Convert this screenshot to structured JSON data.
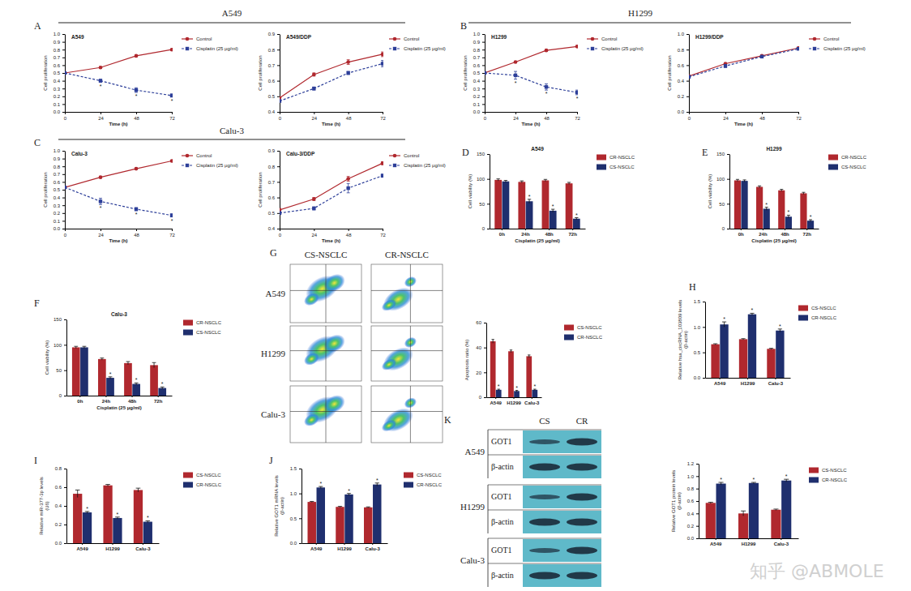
{
  "chart_data": [
    {
      "type": "line",
      "title": "A549",
      "x_label": "Time (h)",
      "y_label": "Cell proliferation",
      "x": [
        0,
        24,
        48,
        72
      ],
      "xlim": [
        0,
        72
      ],
      "xticks": [
        0,
        24,
        48,
        72
      ],
      "ylim": [
        0,
        1
      ],
      "yticks": [
        {
          "value": 0,
          "label": "0.0"
        },
        0.1,
        0.2,
        0.3,
        0.4,
        0.5,
        0.6,
        0.7,
        0.8,
        0.9,
        {
          "value": 1,
          "label": "1.0"
        }
      ],
      "legend": "right",
      "series": [
        {
          "name": "Control",
          "color": "#b0282e",
          "marker": "circle",
          "line_style": "solid",
          "values": [
            0.5,
            0.57,
            0.72,
            0.8
          ],
          "errors": [
            0.005,
            0.01,
            0.01,
            0.01
          ],
          "annotations": [
            null,
            null,
            null,
            null
          ]
        },
        {
          "name": "Cisplatin (25 μg/ml)",
          "color": "#2d3f99",
          "marker": "square",
          "line_style": "dashed",
          "values": [
            0.5,
            0.4,
            0.28,
            0.21
          ],
          "errors": [
            0.01,
            0.02,
            0.03,
            0.02
          ],
          "annotations": [
            null,
            "*",
            "*",
            "*"
          ]
        }
      ]
    },
    {
      "type": "line",
      "title": "A549/DDP",
      "x_label": "Time (h)",
      "y_label": "Cell proliferation",
      "x": [
        0,
        24,
        48,
        72
      ],
      "xlim": [
        0,
        72
      ],
      "xticks": [
        0,
        24,
        48,
        72
      ],
      "ylim": [
        0.4,
        0.9
      ],
      "yticks": [
        0.4,
        0.5,
        0.6,
        0.7,
        0.8,
        0.9
      ],
      "legend": "right",
      "series": [
        {
          "name": "Control",
          "color": "#b0282e",
          "marker": "circle",
          "line_style": "solid",
          "values": [
            0.49,
            0.64,
            0.72,
            0.77
          ],
          "errors": [
            0.005,
            0.01,
            0.015,
            0.015
          ],
          "annotations": [
            null,
            null,
            null,
            null
          ]
        },
        {
          "name": "Cisplatin (25 μg/ml)",
          "color": "#2d3f99",
          "marker": "square",
          "line_style": "dashed",
          "values": [
            0.47,
            0.55,
            0.65,
            0.71
          ],
          "errors": [
            0.005,
            0.01,
            0.01,
            0.02
          ],
          "annotations": [
            null,
            null,
            null,
            null
          ]
        }
      ]
    },
    {
      "type": "line",
      "title": "H1299",
      "x_label": "Time (h)",
      "y_label": "Cell proliferation",
      "x": [
        0,
        24,
        48,
        72
      ],
      "xlim": [
        0,
        72
      ],
      "xticks": [
        0,
        24,
        48,
        72
      ],
      "ylim": [
        0,
        1
      ],
      "yticks": [
        {
          "value": 0,
          "label": "0.0"
        },
        0.1,
        0.2,
        0.3,
        0.4,
        0.5,
        0.6,
        0.7,
        0.8,
        0.9,
        {
          "value": 1,
          "label": "1.0"
        }
      ],
      "legend": "right",
      "series": [
        {
          "name": "Control",
          "color": "#b0282e",
          "marker": "circle",
          "line_style": "solid",
          "values": [
            0.5,
            0.64,
            0.79,
            0.84
          ],
          "errors": [
            0.005,
            0.01,
            0.01,
            0.01
          ],
          "annotations": [
            null,
            null,
            null,
            null
          ]
        },
        {
          "name": "Cisplatin (25 μg/ml)",
          "color": "#2d3f99",
          "marker": "square",
          "line_style": "dashed",
          "values": [
            0.5,
            0.47,
            0.32,
            0.25
          ],
          "errors": [
            0.01,
            0.05,
            0.04,
            0.03
          ],
          "annotations": [
            null,
            "*",
            "*",
            "*"
          ]
        }
      ]
    },
    {
      "type": "line",
      "title": "H1299/DDP",
      "x_label": "Time (h)",
      "y_label": "Cell proliferation",
      "x": [
        0,
        24,
        48,
        72
      ],
      "xlim": [
        0,
        72
      ],
      "xticks": [
        0,
        24,
        48,
        72
      ],
      "ylim": [
        0,
        1
      ],
      "yticks": [
        {
          "value": 0,
          "label": "0.0"
        },
        0.2,
        0.4,
        0.6,
        0.8,
        {
          "value": 1,
          "label": "1.0"
        }
      ],
      "legend": "right",
      "series": [
        {
          "name": "Control",
          "color": "#b0282e",
          "marker": "circle",
          "line_style": "solid",
          "values": [
            0.46,
            0.62,
            0.72,
            0.82
          ],
          "errors": [
            0.01,
            0.01,
            0.01,
            0.01
          ],
          "annotations": [
            null,
            null,
            null,
            null
          ]
        },
        {
          "name": "Cisplatin (25 μg/ml)",
          "color": "#2d3f99",
          "marker": "square",
          "line_style": "dashed",
          "values": [
            0.45,
            0.59,
            0.71,
            0.81
          ],
          "errors": [
            0.01,
            0.02,
            0.01,
            0.01
          ],
          "annotations": [
            null,
            null,
            null,
            null
          ]
        }
      ]
    },
    {
      "type": "line",
      "title": "Calu-3",
      "x_label": "Time (h)",
      "y_label": "Cell proliferation",
      "x": [
        0,
        24,
        48,
        72
      ],
      "xlim": [
        0,
        72
      ],
      "xticks": [
        0,
        24,
        48,
        72
      ],
      "ylim": [
        0,
        1
      ],
      "yticks": [
        {
          "value": 0,
          "label": "0.0"
        },
        0.1,
        0.2,
        0.3,
        0.4,
        0.5,
        0.6,
        0.7,
        0.8,
        0.9,
        {
          "value": 1,
          "label": "1.0"
        }
      ],
      "legend": "right",
      "series": [
        {
          "name": "Control",
          "color": "#b0282e",
          "marker": "circle",
          "line_style": "solid",
          "values": [
            0.53,
            0.66,
            0.77,
            0.87
          ],
          "errors": [
            0.005,
            0.01,
            0.01,
            0.01
          ],
          "annotations": [
            null,
            null,
            null,
            null
          ]
        },
        {
          "name": "Cisplatin (25 μg/ml)",
          "color": "#2d3f99",
          "marker": "square",
          "line_style": "dashed",
          "values": [
            0.53,
            0.35,
            0.25,
            0.17
          ],
          "errors": [
            0.01,
            0.04,
            0.02,
            0.02
          ],
          "annotations": [
            null,
            "*",
            "*",
            "*"
          ]
        }
      ]
    },
    {
      "type": "line",
      "title": "Calu-3/DDP",
      "x_label": "Time (h)",
      "y_label": "Cell proliferation",
      "x": [
        0,
        24,
        48,
        72
      ],
      "xlim": [
        0,
        72
      ],
      "xticks": [
        0,
        24,
        48,
        72
      ],
      "ylim": [
        0.4,
        0.9
      ],
      "yticks": [
        0.4,
        0.5,
        0.6,
        0.7,
        0.8,
        0.9
      ],
      "legend": "right",
      "series": [
        {
          "name": "Control",
          "color": "#b0282e",
          "marker": "circle",
          "line_style": "solid",
          "values": [
            0.52,
            0.59,
            0.72,
            0.82
          ],
          "errors": [
            0.01,
            0.01,
            0.015,
            0.01
          ],
          "annotations": [
            null,
            null,
            null,
            null
          ]
        },
        {
          "name": "Cisplatin (25 μg/ml)",
          "color": "#2d3f99",
          "marker": "square",
          "line_style": "dashed",
          "values": [
            0.5,
            0.53,
            0.66,
            0.74
          ],
          "errors": [
            0.01,
            0.01,
            0.03,
            0.01
          ],
          "annotations": [
            null,
            null,
            null,
            null
          ]
        }
      ]
    },
    {
      "type": "bar",
      "title": "A549",
      "x_label": "Cisplatin (25 μg/ml)",
      "y_label": "Cell viability (%)",
      "categories": [
        "0h",
        "24h",
        "48h",
        "72h"
      ],
      "ylim": [
        0,
        150
      ],
      "yticks": [
        0,
        50,
        100,
        150
      ],
      "legend": "right",
      "series": [
        {
          "name": "CR-NSCLC",
          "color": "#b0282e",
          "values": [
            98,
            94,
            97,
            91
          ],
          "errors": [
            2,
            2,
            2,
            2
          ],
          "annotations": [
            null,
            null,
            null,
            null
          ]
        },
        {
          "name": "CS-NSCLC",
          "color": "#1f2f6e",
          "values": [
            95,
            55,
            36,
            20
          ],
          "errors": [
            2,
            4,
            3,
            2
          ],
          "annotations": [
            null,
            "*",
            "*",
            "*"
          ]
        }
      ]
    },
    {
      "type": "bar",
      "title": "H1299",
      "x_label": "Cisplatin (25 μg/ml)",
      "y_label": "Cell viability (%)",
      "categories": [
        "0h",
        "24h",
        "48h",
        "72h"
      ],
      "ylim": [
        0,
        150
      ],
      "yticks": [
        0,
        50,
        100,
        150
      ],
      "legend": "right",
      "series": [
        {
          "name": "CR-NSCLC",
          "color": "#b0282e",
          "values": [
            97,
            84,
            77,
            71
          ],
          "errors": [
            2,
            2,
            2,
            2
          ],
          "annotations": [
            null,
            null,
            null,
            null
          ]
        },
        {
          "name": "CS-NSCLC",
          "color": "#1f2f6e",
          "values": [
            96,
            40,
            24,
            16
          ],
          "errors": [
            2,
            3,
            3,
            2
          ],
          "annotations": [
            null,
            "*",
            "*",
            "*"
          ]
        }
      ]
    },
    {
      "type": "bar",
      "title": "Calu-3",
      "x_label": "Cisplatin (25 μg/ml)",
      "y_label": "Cell viability (%)",
      "categories": [
        "0h",
        "24h",
        "48h",
        "72h"
      ],
      "ylim": [
        0,
        150
      ],
      "yticks": [
        0,
        50,
        100,
        150
      ],
      "legend": "right",
      "series": [
        {
          "name": "CR-NSCLC",
          "color": "#b0282e",
          "values": [
            95,
            72,
            64,
            60
          ],
          "errors": [
            2,
            2,
            3,
            5
          ],
          "annotations": [
            null,
            null,
            null,
            null
          ]
        },
        {
          "name": "CS-NSCLC",
          "color": "#1f2f6e",
          "values": [
            95,
            35,
            23,
            15
          ],
          "errors": [
            2,
            2,
            2,
            2
          ],
          "annotations": [
            null,
            "*",
            "*",
            "*"
          ]
        }
      ]
    },
    {
      "type": "bar",
      "y_label": "Apoptosis ratio (%)",
      "categories": [
        "A549",
        "H1299",
        "Calu-3"
      ],
      "ylim": [
        0,
        60
      ],
      "yticks": [
        0,
        20,
        40,
        60
      ],
      "legend": "right",
      "series": [
        {
          "name": "CS-NSCLC",
          "color": "#b0282e",
          "values": [
            45,
            37,
            33
          ],
          "errors": [
            1.5,
            1,
            1
          ],
          "annotations": [
            null,
            null,
            null
          ]
        },
        {
          "name": "CR-NSCLC",
          "color": "#1f2f6e",
          "values": [
            6,
            5,
            6
          ],
          "errors": [
            0.5,
            0.5,
            0.5
          ],
          "annotations": [
            "*",
            "*",
            "*"
          ]
        }
      ]
    },
    {
      "type": "bar",
      "y_label": [
        "Relative hsa_circRNA_103809 levels",
        "(β-actin)"
      ],
      "categories": [
        "A549",
        "H1299",
        "Calu-3"
      ],
      "ylim": [
        0,
        1.5
      ],
      "yticks": [
        {
          "value": 0,
          "label": "0.0"
        },
        0.5,
        {
          "value": 1,
          "label": "1.0"
        },
        1.5
      ],
      "legend": "right",
      "series": [
        {
          "name": "CS-NSCLC",
          "color": "#b0282e",
          "values": [
            0.66,
            0.76,
            0.57
          ],
          "errors": [
            0.01,
            0.01,
            0.01
          ],
          "annotations": [
            null,
            null,
            null
          ]
        },
        {
          "name": "CR-NSCLC",
          "color": "#1f2f6e",
          "values": [
            1.05,
            1.25,
            0.93
          ],
          "errors": [
            0.05,
            0.02,
            0.03
          ],
          "annotations": [
            "*",
            "*",
            "*"
          ]
        }
      ]
    },
    {
      "type": "bar",
      "y_label": [
        "Relative miR-377-3p levels",
        "(U6)"
      ],
      "categories": [
        "A549",
        "H1299",
        "Calu-3"
      ],
      "ylim": [
        0,
        0.8
      ],
      "yticks": [
        {
          "value": 0,
          "label": "0.0"
        },
        0.2,
        0.4,
        0.6,
        0.8
      ],
      "legend": "right",
      "series": [
        {
          "name": "CS-NSCLC",
          "color": "#b0282e",
          "values": [
            0.53,
            0.62,
            0.57
          ],
          "errors": [
            0.04,
            0.01,
            0.02
          ],
          "annotations": [
            null,
            null,
            null
          ]
        },
        {
          "name": "CR-NSCLC",
          "color": "#1f2f6e",
          "values": [
            0.33,
            0.27,
            0.23
          ],
          "errors": [
            0.01,
            0.01,
            0.01
          ],
          "annotations": [
            "*",
            "*",
            "*"
          ]
        }
      ]
    },
    {
      "type": "bar",
      "y_label": [
        "Relative GOT1 mRNA levels",
        "(β-actin)"
      ],
      "categories": [
        "A549",
        "H1299",
        "Calu-3"
      ],
      "ylim": [
        0,
        1.5
      ],
      "yticks": [
        {
          "value": 0,
          "label": "0.0"
        },
        0.5,
        {
          "value": 1,
          "label": "1.0"
        },
        1.5
      ],
      "legend": "right",
      "series": [
        {
          "name": "CS-NSCLC",
          "color": "#b0282e",
          "values": [
            0.83,
            0.73,
            0.72
          ],
          "errors": [
            0.01,
            0.01,
            0.01
          ],
          "annotations": [
            null,
            null,
            null
          ]
        },
        {
          "name": "CR-NSCLC",
          "color": "#1f2f6e",
          "values": [
            1.12,
            0.98,
            1.18
          ],
          "errors": [
            0.02,
            0.02,
            0.03
          ],
          "annotations": [
            "*",
            "*",
            "*"
          ]
        }
      ]
    },
    {
      "type": "bar",
      "y_label": [
        "Relative GOT1 protein levels",
        "(β-actin)"
      ],
      "categories": [
        "A549",
        "H1299",
        "Calu-3"
      ],
      "ylim": [
        0,
        1.2
      ],
      "yticks": [
        {
          "value": 0,
          "label": "0.0"
        },
        0.2,
        0.4,
        0.6,
        0.8,
        {
          "value": 1,
          "label": "1.0"
        },
        1.2
      ],
      "legend": "right",
      "series": [
        {
          "name": "CS-NSCLC",
          "color": "#b0282e",
          "values": [
            0.57,
            0.4,
            0.46
          ],
          "errors": [
            0.01,
            0.04,
            0.01
          ],
          "annotations": [
            null,
            null,
            null
          ]
        },
        {
          "name": "CR-NSCLC",
          "color": "#1f2f6e",
          "values": [
            0.88,
            0.89,
            0.93
          ],
          "errors": [
            0.02,
            0.01,
            0.02
          ],
          "annotations": [
            "*",
            "*",
            "*"
          ]
        }
      ]
    }
  ],
  "figure": {
    "panel_labels": [
      "A",
      "B",
      "C",
      "D",
      "E",
      "F",
      "G",
      "H",
      "I",
      "J",
      "K"
    ],
    "section_titles": [
      "A549",
      "H1299",
      "Calu-3"
    ],
    "flow": {
      "columns": [
        "CS-NSCLC",
        "CR-NSCLC"
      ],
      "rows": [
        "A549",
        "H1299",
        "Calu-3"
      ]
    },
    "blot": {
      "columns": [
        "CS",
        "CR"
      ],
      "rows": [
        "A549",
        "H1299",
        "Calu-3"
      ],
      "bands": [
        "GOT1",
        "β-actin"
      ]
    },
    "watermark": "知乎 @ABMOLE"
  }
}
